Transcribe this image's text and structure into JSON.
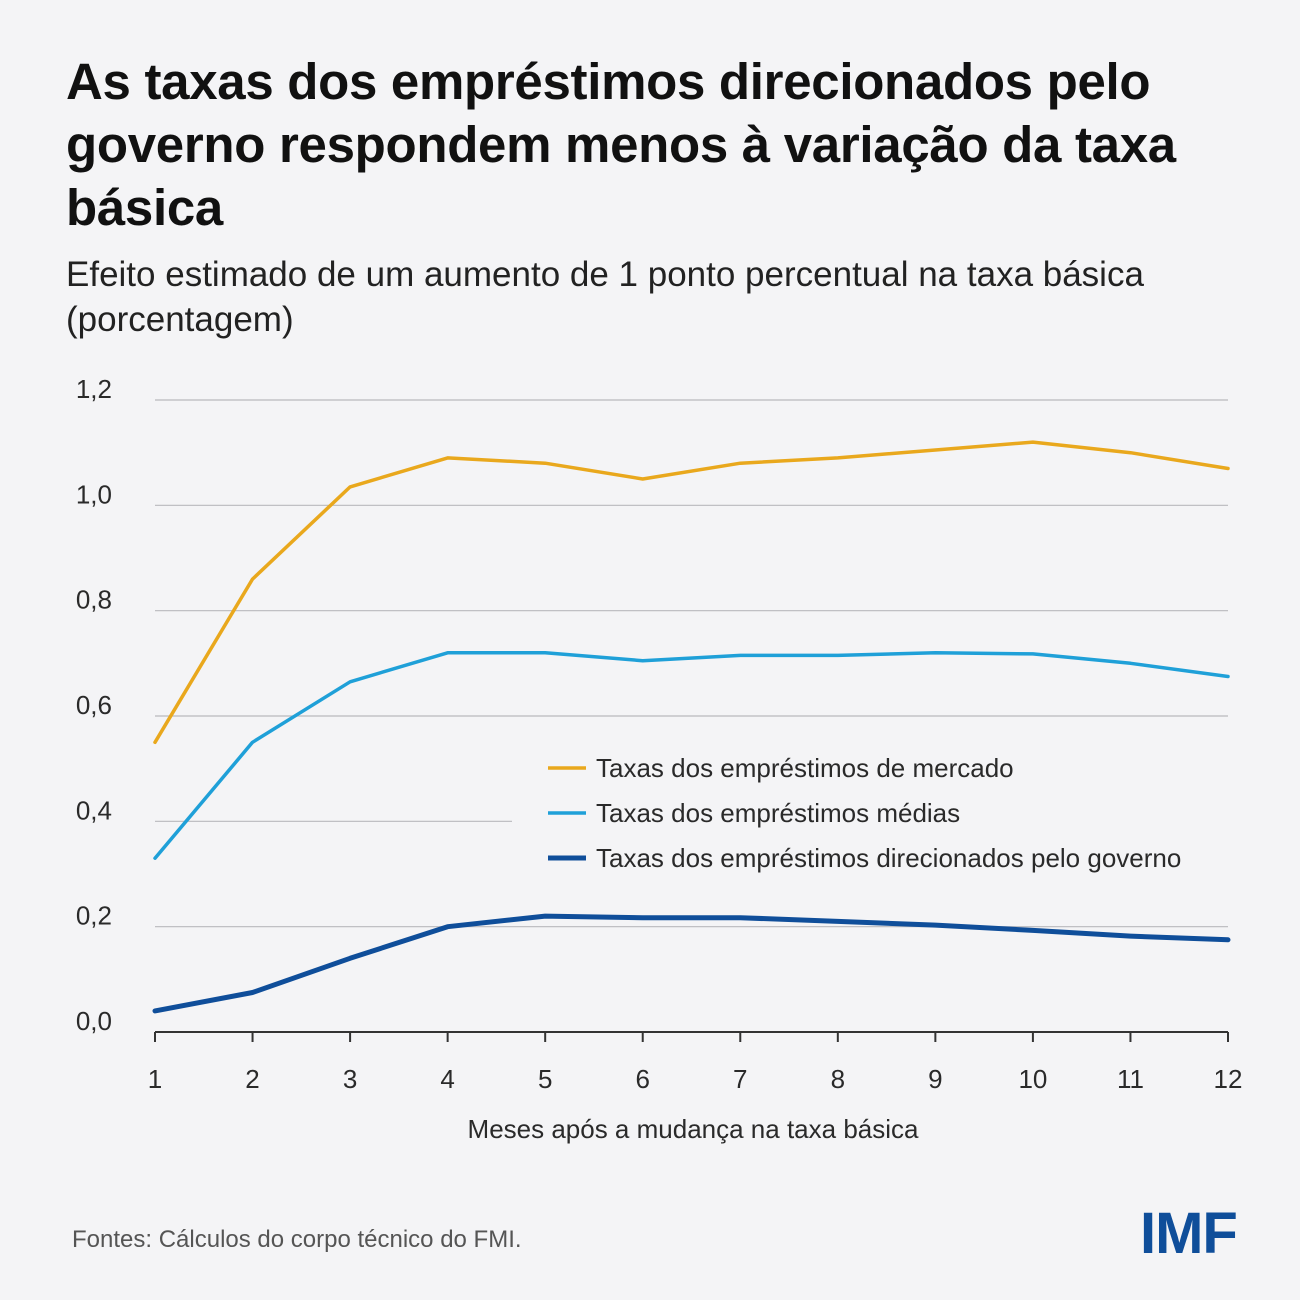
{
  "chart_data": {
    "type": "line",
    "title": "As taxas dos empréstimos direcionados pelo governo respondem menos à variação da taxa básica",
    "subtitle": "Efeito estimado de um aumento de 1 ponto percentual na taxa básica (porcentagem)",
    "xlabel": "Meses após a mudança na taxa básica",
    "ylabel": "",
    "x": [
      1,
      2,
      3,
      4,
      5,
      6,
      7,
      8,
      9,
      10,
      11,
      12
    ],
    "x_tick_labels": [
      "1",
      "2",
      "3",
      "4",
      "5",
      "6",
      "7",
      "8",
      "9",
      "10",
      "11",
      "12"
    ],
    "ylim": [
      0,
      1.2
    ],
    "y_ticks": [
      0,
      0.2,
      0.4,
      0.6,
      0.8,
      1.0,
      1.2
    ],
    "y_tick_labels": [
      "0,0",
      "0,2",
      "0,4",
      "0,6",
      "0,8",
      "1,0",
      "1,2"
    ],
    "grid": true,
    "legend_position": "lower-right",
    "series": [
      {
        "name": "Taxas dos empréstimos de mercado",
        "color": "#e9a81d",
        "values": [
          0.55,
          0.86,
          1.035,
          1.09,
          1.08,
          1.05,
          1.08,
          1.09,
          1.105,
          1.12,
          1.1,
          1.07
        ]
      },
      {
        "name": "Taxas dos empréstimos médias",
        "color": "#1fa0d8",
        "values": [
          0.33,
          0.55,
          0.665,
          0.72,
          0.72,
          0.705,
          0.715,
          0.715,
          0.72,
          0.718,
          0.7,
          0.675
        ]
      },
      {
        "name": "Taxas dos empréstimos direcionados pelo governo",
        "color": "#0f4e9a",
        "values": [
          0.04,
          0.075,
          0.14,
          0.2,
          0.22,
          0.217,
          0.217,
          0.21,
          0.203,
          0.193,
          0.182,
          0.175
        ]
      }
    ]
  },
  "source": "Fontes: Cálculos do corpo técnico do FMI.",
  "logo_text": "IMF"
}
